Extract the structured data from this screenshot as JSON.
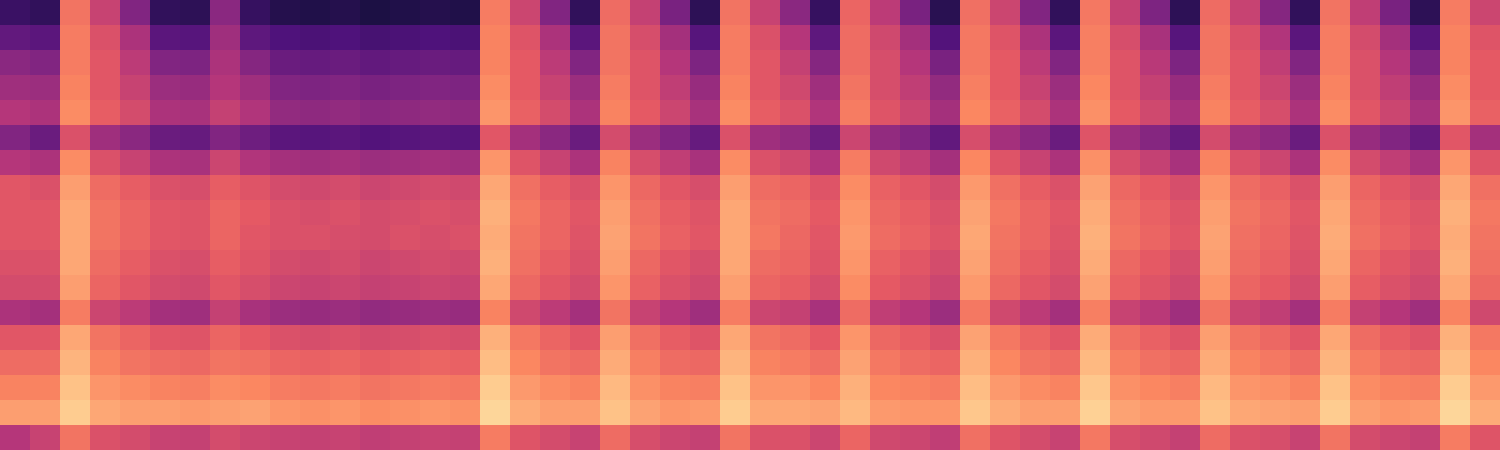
{
  "chart_data": {
    "type": "heatmap",
    "tick_labels": false,
    "zlim": [
      0,
      100
    ],
    "cells": [
      [
        20,
        18,
        70,
        55,
        38,
        18,
        17,
        40,
        19,
        15,
        14,
        15,
        13,
        14,
        15,
        14,
        72,
        56,
        38,
        18,
        68,
        54,
        36,
        17,
        70,
        55,
        40,
        19,
        66,
        52,
        36,
        16,
        69,
        56,
        38,
        18,
        71,
        54,
        37,
        17,
        68,
        55,
        39,
        18,
        70,
        53,
        36,
        17,
        72,
        56
      ],
      [
        30,
        28,
        72,
        60,
        48,
        28,
        27,
        45,
        29,
        25,
        24,
        25,
        23,
        24,
        25,
        24,
        74,
        61,
        48,
        28,
        70,
        59,
        46,
        27,
        72,
        60,
        50,
        29,
        68,
        57,
        46,
        26,
        71,
        61,
        48,
        28,
        73,
        59,
        47,
        27,
        70,
        60,
        49,
        28,
        72,
        58,
        46,
        27,
        74,
        61
      ],
      [
        40,
        38,
        72,
        62,
        52,
        38,
        37,
        48,
        39,
        32,
        31,
        32,
        30,
        31,
        32,
        31,
        74,
        63,
        52,
        38,
        70,
        61,
        50,
        37,
        72,
        62,
        54,
        39,
        68,
        59,
        50,
        36,
        71,
        63,
        52,
        38,
        73,
        61,
        51,
        37,
        70,
        62,
        53,
        38,
        72,
        60,
        50,
        37,
        74,
        63
      ],
      [
        45,
        44,
        74,
        62,
        55,
        44,
        43,
        50,
        45,
        38,
        37,
        38,
        36,
        37,
        38,
        37,
        76,
        63,
        55,
        44,
        72,
        61,
        53,
        43,
        74,
        62,
        57,
        45,
        70,
        59,
        53,
        42,
        73,
        63,
        55,
        44,
        75,
        61,
        54,
        43,
        72,
        62,
        56,
        44,
        74,
        60,
        53,
        43,
        76,
        63
      ],
      [
        50,
        48,
        76,
        64,
        58,
        48,
        47,
        54,
        49,
        42,
        41,
        42,
        40,
        41,
        42,
        41,
        78,
        65,
        58,
        48,
        74,
        63,
        56,
        47,
        76,
        64,
        60,
        49,
        72,
        61,
        56,
        46,
        75,
        65,
        58,
        48,
        77,
        63,
        57,
        47,
        74,
        64,
        59,
        48,
        76,
        62,
        56,
        47,
        78,
        65
      ],
      [
        38,
        32,
        60,
        45,
        40,
        32,
        31,
        38,
        33,
        28,
        27,
        28,
        26,
        27,
        28,
        27,
        62,
        46,
        40,
        32,
        58,
        44,
        38,
        31,
        60,
        45,
        42,
        33,
        56,
        42,
        38,
        30,
        59,
        46,
        40,
        32,
        61,
        44,
        39,
        31,
        58,
        45,
        41,
        32,
        60,
        43,
        38,
        31,
        62,
        46
      ],
      [
        50,
        48,
        76,
        60,
        55,
        48,
        47,
        56,
        49,
        46,
        45,
        46,
        44,
        45,
        46,
        45,
        78,
        61,
        55,
        48,
        74,
        59,
        53,
        47,
        76,
        60,
        57,
        49,
        72,
        57,
        53,
        46,
        75,
        61,
        55,
        48,
        77,
        59,
        54,
        47,
        74,
        60,
        56,
        48,
        76,
        58,
        53,
        47,
        78,
        61
      ],
      [
        62,
        60,
        80,
        68,
        64,
        60,
        59,
        64,
        61,
        58,
        57,
        58,
        56,
        57,
        58,
        57,
        82,
        69,
        64,
        60,
        78,
        67,
        62,
        59,
        80,
        68,
        66,
        61,
        76,
        65,
        62,
        58,
        79,
        69,
        64,
        60,
        81,
        67,
        63,
        59,
        78,
        68,
        65,
        60,
        80,
        66,
        62,
        59,
        82,
        69
      ],
      [
        62,
        62,
        82,
        70,
        66,
        62,
        61,
        66,
        63,
        60,
        59,
        60,
        58,
        59,
        60,
        59,
        84,
        71,
        66,
        62,
        80,
        69,
        64,
        61,
        82,
        70,
        68,
        63,
        78,
        67,
        64,
        60,
        81,
        71,
        66,
        62,
        83,
        69,
        65,
        61,
        80,
        70,
        67,
        62,
        82,
        68,
        64,
        61,
        84,
        71
      ],
      [
        62,
        62,
        82,
        70,
        66,
        62,
        61,
        66,
        62,
        60,
        60,
        59,
        58,
        60,
        59,
        60,
        83,
        70,
        66,
        61,
        81,
        70,
        65,
        62,
        82,
        71,
        67,
        62,
        79,
        68,
        65,
        61,
        82,
        70,
        66,
        61,
        84,
        70,
        66,
        62,
        81,
        69,
        66,
        61,
        83,
        69,
        65,
        62,
        83,
        70
      ],
      [
        60,
        60,
        82,
        68,
        64,
        60,
        59,
        64,
        61,
        58,
        57,
        58,
        56,
        57,
        58,
        57,
        84,
        69,
        64,
        60,
        80,
        67,
        62,
        59,
        82,
        68,
        66,
        61,
        78,
        65,
        62,
        58,
        81,
        69,
        64,
        60,
        83,
        67,
        63,
        59,
        80,
        68,
        65,
        60,
        82,
        66,
        62,
        59,
        84,
        69
      ],
      [
        58,
        58,
        80,
        66,
        62,
        58,
        57,
        62,
        59,
        56,
        55,
        56,
        54,
        55,
        56,
        55,
        82,
        67,
        62,
        58,
        78,
        65,
        60,
        57,
        80,
        66,
        64,
        59,
        76,
        63,
        60,
        56,
        79,
        67,
        62,
        58,
        81,
        65,
        61,
        57,
        78,
        66,
        63,
        58,
        80,
        64,
        60,
        57,
        82,
        67
      ],
      [
        48,
        46,
        72,
        56,
        52,
        46,
        45,
        54,
        47,
        44,
        43,
        44,
        42,
        43,
        44,
        43,
        74,
        57,
        52,
        46,
        70,
        55,
        50,
        45,
        72,
        56,
        54,
        47,
        68,
        53,
        50,
        44,
        71,
        57,
        52,
        46,
        73,
        55,
        51,
        45,
        70,
        56,
        53,
        46,
        72,
        54,
        50,
        45,
        74,
        57
      ],
      [
        62,
        62,
        82,
        70,
        66,
        62,
        61,
        66,
        63,
        60,
        59,
        60,
        58,
        59,
        60,
        59,
        84,
        71,
        66,
        62,
        80,
        69,
        64,
        61,
        82,
        70,
        68,
        63,
        78,
        67,
        64,
        60,
        81,
        71,
        66,
        62,
        83,
        69,
        65,
        61,
        80,
        70,
        67,
        62,
        82,
        68,
        64,
        61,
        84,
        71
      ],
      [
        68,
        68,
        85,
        74,
        70,
        68,
        67,
        70,
        69,
        66,
        65,
        66,
        64,
        65,
        66,
        65,
        87,
        75,
        70,
        68,
        83,
        73,
        68,
        67,
        85,
        74,
        72,
        69,
        81,
        71,
        68,
        66,
        84,
        75,
        70,
        68,
        86,
        73,
        69,
        67,
        83,
        74,
        71,
        68,
        85,
        72,
        68,
        67,
        87,
        75
      ],
      [
        74,
        74,
        88,
        78,
        76,
        74,
        73,
        76,
        75,
        72,
        71,
        72,
        70,
        71,
        72,
        71,
        90,
        79,
        76,
        74,
        86,
        77,
        74,
        73,
        88,
        78,
        78,
        75,
        84,
        75,
        74,
        72,
        87,
        79,
        76,
        74,
        89,
        77,
        75,
        73,
        86,
        78,
        77,
        74,
        88,
        76,
        74,
        73,
        90,
        79
      ],
      [
        80,
        80,
        90,
        82,
        80,
        80,
        79,
        80,
        81,
        78,
        77,
        78,
        76,
        77,
        78,
        77,
        92,
        83,
        80,
        80,
        88,
        81,
        78,
        79,
        90,
        82,
        82,
        81,
        86,
        79,
        78,
        78,
        89,
        83,
        80,
        80,
        91,
        81,
        79,
        79,
        88,
        82,
        81,
        80,
        90,
        80,
        78,
        79,
        92,
        83
      ],
      [
        50,
        55,
        70,
        60,
        58,
        55,
        54,
        58,
        56,
        55,
        54,
        55,
        53,
        54,
        55,
        54,
        72,
        61,
        58,
        55,
        68,
        59,
        56,
        54,
        70,
        60,
        60,
        56,
        66,
        57,
        56,
        53,
        69,
        61,
        58,
        55,
        71,
        59,
        57,
        54,
        68,
        60,
        59,
        55,
        70,
        58,
        56,
        54,
        72,
        61
      ]
    ]
  }
}
